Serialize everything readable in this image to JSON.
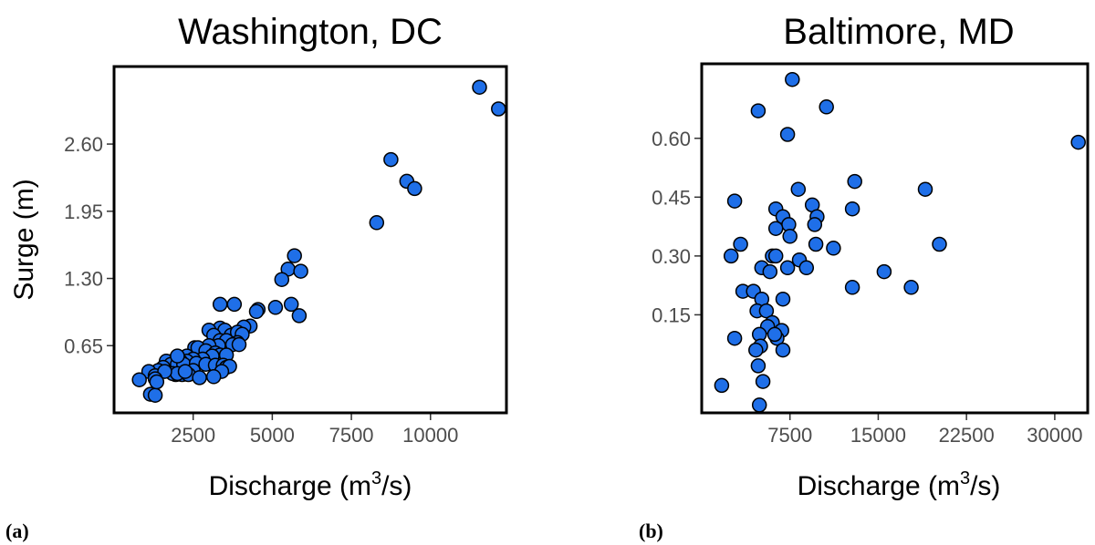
{
  "colors": {
    "point_fill": "#1f6fe8",
    "point_stroke": "#000000",
    "tick_text": "#4d4d4d"
  },
  "panel_labels": [
    "(a)",
    "(b)"
  ],
  "chart_data": [
    {
      "type": "scatter",
      "title": "Washington, DC",
      "xlabel_base": "Discharge (m",
      "xlabel_sup": "3",
      "xlabel_tail": "/s)",
      "ylabel": "Surge (m)",
      "xlim": [
        0,
        12400
      ],
      "ylim": [
        0,
        3.35
      ],
      "xticks": [
        2500,
        5000,
        7500,
        10000
      ],
      "xtick_labels": [
        "2500",
        "5000",
        "7500",
        "10000"
      ],
      "yticks": [
        0.65,
        1.3,
        1.95,
        2.6
      ],
      "ytick_labels": [
        "0.65",
        "1.30",
        "1.95",
        "2.60"
      ],
      "grid": false,
      "points": [
        [
          11550,
          3.15
        ],
        [
          12150,
          2.94
        ],
        [
          8750,
          2.45
        ],
        [
          9250,
          2.24
        ],
        [
          9500,
          2.17
        ],
        [
          8300,
          1.84
        ],
        [
          5700,
          1.52
        ],
        [
          5500,
          1.39
        ],
        [
          5900,
          1.37
        ],
        [
          5300,
          1.29
        ],
        [
          5850,
          0.94
        ],
        [
          5600,
          1.05
        ],
        [
          5100,
          1.02
        ],
        [
          4550,
          1.0
        ],
        [
          4500,
          0.98
        ],
        [
          3350,
          1.05
        ],
        [
          3800,
          1.05
        ],
        [
          4300,
          0.84
        ],
        [
          4100,
          0.83
        ],
        [
          3350,
          0.82
        ],
        [
          3500,
          0.8
        ],
        [
          3000,
          0.8
        ],
        [
          3700,
          0.75
        ],
        [
          3900,
          0.78
        ],
        [
          4050,
          0.76
        ],
        [
          3150,
          0.75
        ],
        [
          3350,
          0.7
        ],
        [
          3550,
          0.7
        ],
        [
          3900,
          0.68
        ],
        [
          3750,
          0.66
        ],
        [
          3950,
          0.66
        ],
        [
          3300,
          0.65
        ],
        [
          3000,
          0.65
        ],
        [
          2550,
          0.63
        ],
        [
          2650,
          0.63
        ],
        [
          2900,
          0.6
        ],
        [
          3200,
          0.58
        ],
        [
          3350,
          0.56
        ],
        [
          3550,
          0.56
        ],
        [
          3100,
          0.55
        ],
        [
          2300,
          0.55
        ],
        [
          2800,
          0.52
        ],
        [
          2500,
          0.52
        ],
        [
          2300,
          0.5
        ],
        [
          2100,
          0.5
        ],
        [
          1850,
          0.5
        ],
        [
          1650,
          0.5
        ],
        [
          1800,
          0.47
        ],
        [
          2000,
          0.47
        ],
        [
          2200,
          0.47
        ],
        [
          2600,
          0.48
        ],
        [
          2900,
          0.47
        ],
        [
          3200,
          0.46
        ],
        [
          3450,
          0.46
        ],
        [
          3550,
          0.44
        ],
        [
          3650,
          0.45
        ],
        [
          3400,
          0.4
        ],
        [
          2500,
          0.41
        ],
        [
          1550,
          0.44
        ],
        [
          1400,
          0.41
        ],
        [
          1100,
          0.4
        ],
        [
          1300,
          0.36
        ],
        [
          1950,
          0.37
        ],
        [
          2150,
          0.37
        ],
        [
          2350,
          0.37
        ],
        [
          2700,
          0.34
        ],
        [
          3150,
          0.35
        ],
        [
          1850,
          0.38
        ],
        [
          2000,
          0.38
        ],
        [
          1600,
          0.4
        ],
        [
          2000,
          0.55
        ],
        [
          800,
          0.32
        ],
        [
          1300,
          0.33
        ],
        [
          1150,
          0.18
        ],
        [
          1300,
          0.17
        ],
        [
          1350,
          0.3
        ],
        [
          2250,
          0.4
        ]
      ]
    },
    {
      "type": "scatter",
      "title": "Baltimore, MD",
      "xlabel_base": "Discharge (m",
      "xlabel_sup": "3",
      "xlabel_tail": "/s)",
      "ylabel": "",
      "xlim": [
        0,
        32800
      ],
      "ylim": [
        -0.1,
        0.79
      ],
      "xticks": [
        7500,
        15000,
        22500,
        30000
      ],
      "xtick_labels": [
        "7500",
        "15000",
        "22500",
        "30000"
      ],
      "yticks": [
        0.15,
        0.3,
        0.45,
        0.6
      ],
      "ytick_labels": [
        "0.15",
        "0.30",
        "0.45",
        "0.60"
      ],
      "grid": false,
      "points": [
        [
          7700,
          0.75
        ],
        [
          10600,
          0.68
        ],
        [
          4800,
          0.67
        ],
        [
          7300,
          0.61
        ],
        [
          32000,
          0.59
        ],
        [
          9400,
          0.43
        ],
        [
          13000,
          0.49
        ],
        [
          19000,
          0.47
        ],
        [
          8200,
          0.47
        ],
        [
          12800,
          0.42
        ],
        [
          2800,
          0.44
        ],
        [
          6300,
          0.42
        ],
        [
          6900,
          0.4
        ],
        [
          9800,
          0.4
        ],
        [
          7400,
          0.38
        ],
        [
          6300,
          0.37
        ],
        [
          9600,
          0.38
        ],
        [
          2500,
          0.3
        ],
        [
          3300,
          0.33
        ],
        [
          9700,
          0.33
        ],
        [
          11200,
          0.32
        ],
        [
          20200,
          0.33
        ],
        [
          7500,
          0.35
        ],
        [
          6000,
          0.3
        ],
        [
          6300,
          0.3
        ],
        [
          8300,
          0.29
        ],
        [
          8900,
          0.27
        ],
        [
          5100,
          0.27
        ],
        [
          5800,
          0.26
        ],
        [
          7300,
          0.27
        ],
        [
          15500,
          0.26
        ],
        [
          12800,
          0.22
        ],
        [
          17800,
          0.22
        ],
        [
          3500,
          0.21
        ],
        [
          4400,
          0.21
        ],
        [
          5100,
          0.19
        ],
        [
          6900,
          0.19
        ],
        [
          4700,
          0.16
        ],
        [
          5500,
          0.16
        ],
        [
          6000,
          0.13
        ],
        [
          5600,
          0.12
        ],
        [
          6800,
          0.11
        ],
        [
          4900,
          0.1
        ],
        [
          6400,
          0.09
        ],
        [
          2800,
          0.09
        ],
        [
          5000,
          0.07
        ],
        [
          4600,
          0.06
        ],
        [
          6900,
          0.06
        ],
        [
          6200,
          0.1
        ],
        [
          4800,
          0.02
        ],
        [
          1700,
          -0.03
        ],
        [
          5200,
          -0.02
        ],
        [
          4900,
          -0.08
        ]
      ]
    }
  ]
}
